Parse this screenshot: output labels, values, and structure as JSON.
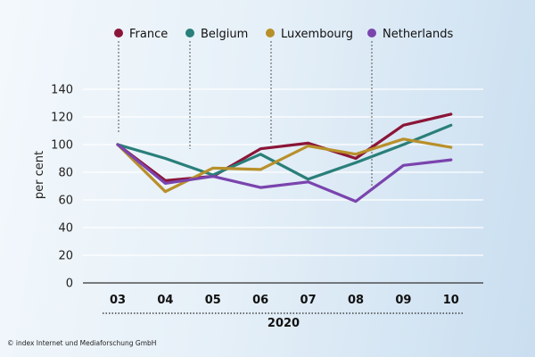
{
  "chart_data": {
    "type": "line",
    "categories": [
      "03",
      "04",
      "05",
      "06",
      "07",
      "08",
      "09",
      "10"
    ],
    "series": [
      {
        "name": "France",
        "color": "#8b1538",
        "values": [
          100,
          74,
          77,
          97,
          101,
          90,
          114,
          122
        ]
      },
      {
        "name": "Belgium",
        "color": "#2a7f7a",
        "values": [
          100,
          90,
          78,
          93,
          75,
          87,
          100,
          114
        ]
      },
      {
        "name": "Luxembourg",
        "color": "#b8902a",
        "values": [
          100,
          66,
          83,
          82,
          99,
          93,
          104,
          98
        ]
      },
      {
        "name": "Netherlands",
        "color": "#7a44ad",
        "values": [
          100,
          72,
          77,
          69,
          73,
          59,
          85,
          89
        ]
      }
    ],
    "ylabel": "per cent",
    "xlabel": "2020",
    "ylim": [
      0,
      140
    ],
    "yticks": [
      0,
      20,
      40,
      60,
      80,
      100,
      120,
      140
    ],
    "grid": true,
    "legend_position": "top",
    "gridline_color": "#ffffff",
    "axis_color": "#333333"
  },
  "footer": {
    "copyright": "© index Internet und Mediaforschung GmbH"
  }
}
